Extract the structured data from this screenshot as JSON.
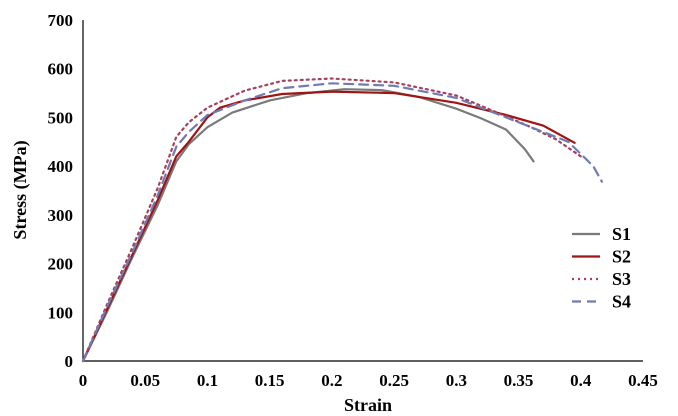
{
  "chart_data": {
    "type": "line",
    "title": "",
    "xlabel": "Strain",
    "ylabel": "Stress (MPa)",
    "xlim": [
      0,
      0.45
    ],
    "ylim": [
      0,
      700
    ],
    "xticks": [
      0,
      0.05,
      0.1,
      0.15,
      0.2,
      0.25,
      0.3,
      0.35,
      0.4,
      0.45
    ],
    "xtick_labels": [
      "0",
      "0.05",
      "0.1",
      "0.15",
      "0.2",
      "0.25",
      "0.3",
      "0.35",
      "0.4",
      "0.45"
    ],
    "yticks": [
      0,
      100,
      200,
      300,
      400,
      500,
      600,
      700
    ],
    "ytick_labels": [
      "0",
      "100",
      "200",
      "300",
      "400",
      "500",
      "600",
      "700"
    ],
    "grid": false,
    "legend_position": "right",
    "series": [
      {
        "name": "S1",
        "color": "#7a7a7a",
        "style": "solid",
        "points": [
          [
            0,
            0
          ],
          [
            0.02,
            105
          ],
          [
            0.04,
            215
          ],
          [
            0.06,
            320
          ],
          [
            0.075,
            410
          ],
          [
            0.085,
            445
          ],
          [
            0.1,
            480
          ],
          [
            0.12,
            510
          ],
          [
            0.15,
            535
          ],
          [
            0.18,
            550
          ],
          [
            0.21,
            558
          ],
          [
            0.24,
            556
          ],
          [
            0.27,
            542
          ],
          [
            0.3,
            518
          ],
          [
            0.32,
            498
          ],
          [
            0.34,
            475
          ],
          [
            0.355,
            435
          ],
          [
            0.362,
            410
          ]
        ]
      },
      {
        "name": "S2",
        "color": "#a01414",
        "style": "solid",
        "points": [
          [
            0,
            0
          ],
          [
            0.02,
            110
          ],
          [
            0.04,
            220
          ],
          [
            0.06,
            330
          ],
          [
            0.075,
            420
          ],
          [
            0.085,
            450
          ],
          [
            0.1,
            500
          ],
          [
            0.11,
            520
          ],
          [
            0.13,
            535
          ],
          [
            0.16,
            548
          ],
          [
            0.2,
            553
          ],
          [
            0.25,
            550
          ],
          [
            0.3,
            530
          ],
          [
            0.34,
            505
          ],
          [
            0.37,
            483
          ],
          [
            0.395,
            448
          ]
        ]
      },
      {
        "name": "S3",
        "color": "#a8405a",
        "style": "dotted",
        "points": [
          [
            0,
            0
          ],
          [
            0.02,
            120
          ],
          [
            0.04,
            235
          ],
          [
            0.06,
            355
          ],
          [
            0.075,
            460
          ],
          [
            0.085,
            490
          ],
          [
            0.1,
            520
          ],
          [
            0.13,
            555
          ],
          [
            0.16,
            575
          ],
          [
            0.2,
            580
          ],
          [
            0.25,
            572
          ],
          [
            0.3,
            545
          ],
          [
            0.33,
            513
          ],
          [
            0.36,
            480
          ],
          [
            0.38,
            455
          ],
          [
            0.4,
            420
          ]
        ]
      },
      {
        "name": "S4",
        "color": "#6f7bb5",
        "style": "dashed",
        "points": [
          [
            0,
            0
          ],
          [
            0.02,
            115
          ],
          [
            0.04,
            225
          ],
          [
            0.06,
            340
          ],
          [
            0.075,
            440
          ],
          [
            0.085,
            470
          ],
          [
            0.1,
            505
          ],
          [
            0.13,
            535
          ],
          [
            0.16,
            560
          ],
          [
            0.2,
            570
          ],
          [
            0.25,
            565
          ],
          [
            0.3,
            540
          ],
          [
            0.33,
            510
          ],
          [
            0.36,
            480
          ],
          [
            0.39,
            450
          ],
          [
            0.41,
            400
          ],
          [
            0.417,
            368
          ]
        ]
      }
    ]
  }
}
